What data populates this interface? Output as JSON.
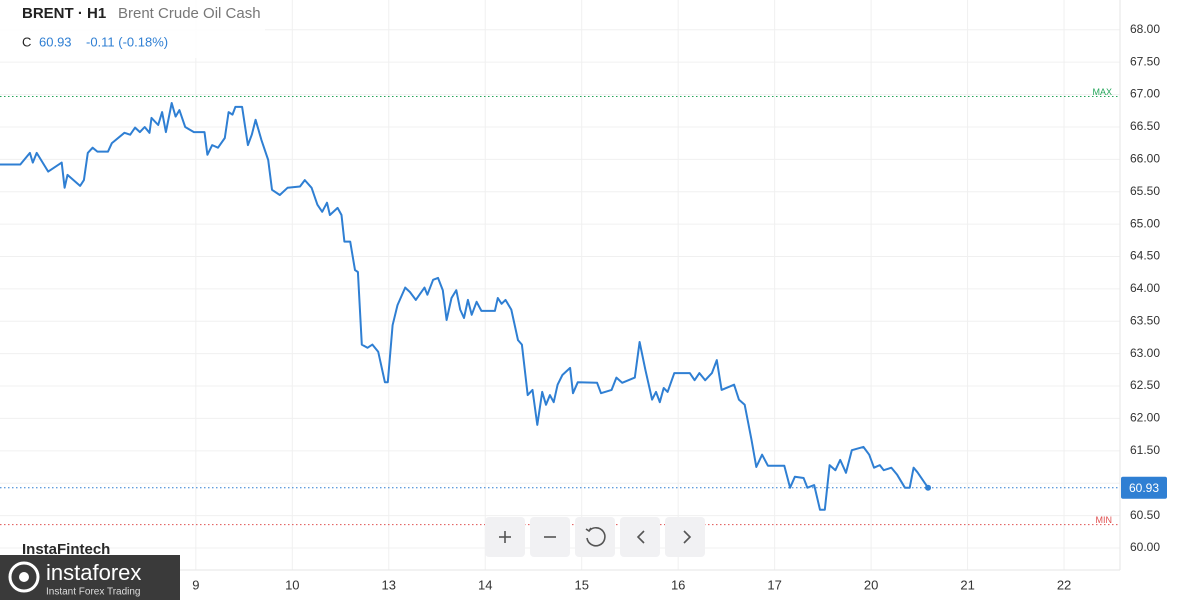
{
  "header": {
    "symbol": "BRENT · H1",
    "name": "Brent Crude Oil Cash",
    "close_prefix": "C",
    "change": "-0.11 (-0.18%)"
  },
  "watermark": {
    "top": "InstaFintech",
    "brand": "instaforex",
    "tagline": "Instant Forex Trading"
  },
  "controls": [
    "+",
    "−",
    "reset",
    "<",
    ">"
  ],
  "chart_data": {
    "type": "line",
    "xlim": [
      -2.03,
      9.58
    ],
    "xticks": [
      {
        "value": 0,
        "label": "9"
      },
      {
        "value": 1,
        "label": "10"
      },
      {
        "value": 2,
        "label": "13"
      },
      {
        "value": 3,
        "label": "14"
      },
      {
        "value": 4,
        "label": "15"
      },
      {
        "value": 5,
        "label": "16"
      },
      {
        "value": 6,
        "label": "17"
      },
      {
        "value": 7,
        "label": "20"
      },
      {
        "value": 8,
        "label": "21"
      },
      {
        "value": 9,
        "label": "22"
      }
    ],
    "ylim": [
      59.66,
      68.46
    ],
    "yticks": [
      {
        "value": 60,
        "label": "60.00"
      },
      {
        "value": 60.5,
        "label": "60.50"
      },
      {
        "value": 61,
        "label": "61.00"
      },
      {
        "value": 61.5,
        "label": "61.50"
      },
      {
        "value": 62,
        "label": "62.00"
      },
      {
        "value": 62.5,
        "label": "62.50"
      },
      {
        "value": 63,
        "label": "63.00"
      },
      {
        "value": 63.5,
        "label": "63.50"
      },
      {
        "value": 64,
        "label": "64.00"
      },
      {
        "value": 64.5,
        "label": "64.50"
      },
      {
        "value": 65,
        "label": "65.00"
      },
      {
        "value": 65.5,
        "label": "65.50"
      },
      {
        "value": 66,
        "label": "66.00"
      },
      {
        "value": 66.5,
        "label": "66.50"
      },
      {
        "value": 67,
        "label": "67.00"
      },
      {
        "value": 67.5,
        "label": "67.50"
      },
      {
        "value": 68,
        "label": "68.00"
      }
    ],
    "grid": true,
    "last_price": 60.93,
    "max": {
      "value": 66.97,
      "label": "MAX",
      "color": "#26a65b"
    },
    "min": {
      "value": 60.36,
      "label": "MIN",
      "color": "#e05050"
    },
    "series": [
      {
        "color": "#2f7fd3",
        "x": [
          -2.03,
          -1.82,
          -1.72,
          -1.69,
          -1.65,
          -1.53,
          -1.39,
          -1.36,
          -1.33,
          -1.2,
          -1.16,
          -1.12,
          -1.07,
          -1.02,
          -0.91,
          -0.87,
          -0.74,
          -0.68,
          -0.63,
          -0.58,
          -0.53,
          -0.48,
          -0.46,
          -0.39,
          -0.35,
          -0.31,
          -0.25,
          -0.21,
          -0.17,
          -0.11,
          -0.02,
          0.09,
          0.12,
          0.17,
          0.23,
          0.3,
          0.34,
          0.38,
          0.41,
          0.48,
          0.54,
          0.58,
          0.62,
          0.68,
          0.75,
          0.79,
          0.87,
          0.95,
          1.08,
          1.13,
          1.2,
          1.26,
          1.31,
          1.36,
          1.39,
          1.47,
          1.51,
          1.54,
          1.6,
          1.65,
          1.68,
          1.72,
          1.78,
          1.83,
          1.89,
          1.96,
          1.99,
          2.04,
          2.09,
          2.17,
          2.22,
          2.28,
          2.37,
          2.4,
          2.46,
          2.51,
          2.56,
          2.6,
          2.65,
          2.7,
          2.74,
          2.78,
          2.82,
          2.86,
          2.91,
          2.96,
          3.1,
          3.13,
          3.17,
          3.21,
          3.27,
          3.34,
          3.38,
          3.44,
          3.49,
          3.54,
          3.59,
          3.63,
          3.67,
          3.71,
          3.75,
          3.8,
          3.88,
          3.91,
          3.96,
          4.16,
          4.2,
          4.31,
          4.36,
          4.42,
          4.55,
          4.6,
          4.66,
          4.73,
          4.77,
          4.81,
          4.85,
          4.89,
          4.96,
          5.12,
          5.17,
          5.22,
          5.28,
          5.35,
          5.4,
          5.45,
          5.58,
          5.63,
          5.69,
          5.76,
          5.81,
          5.87,
          5.93,
          6.1,
          6.16,
          6.21,
          6.3,
          6.34,
          6.41,
          6.47,
          6.52,
          6.57,
          6.63,
          6.68,
          6.74,
          6.8,
          6.92,
          6.98,
          7.03,
          7.09,
          7.13,
          7.21,
          7.27,
          7.35,
          7.4,
          7.44,
          7.48,
          7.59
        ],
        "values": [
          65.92,
          65.92,
          66.1,
          65.95,
          66.1,
          65.81,
          65.95,
          65.56,
          65.76,
          65.59,
          65.68,
          66.1,
          66.18,
          66.12,
          66.12,
          66.25,
          66.41,
          66.38,
          66.49,
          66.42,
          66.5,
          66.41,
          66.64,
          66.53,
          66.73,
          66.42,
          66.87,
          66.66,
          66.76,
          66.5,
          66.42,
          66.42,
          66.07,
          66.22,
          66.18,
          66.33,
          66.73,
          66.69,
          66.81,
          66.81,
          66.22,
          66.38,
          66.61,
          66.3,
          65.99,
          65.53,
          65.45,
          65.56,
          65.58,
          65.68,
          65.56,
          65.3,
          65.19,
          65.33,
          65.14,
          65.25,
          65.14,
          64.73,
          64.73,
          64.29,
          64.26,
          63.14,
          63.09,
          63.14,
          63.03,
          62.56,
          62.56,
          63.44,
          63.75,
          64.02,
          63.95,
          63.83,
          64.02,
          63.91,
          64.14,
          64.17,
          63.98,
          63.52,
          63.86,
          63.98,
          63.68,
          63.55,
          63.83,
          63.6,
          63.8,
          63.66,
          63.66,
          63.86,
          63.77,
          63.83,
          63.68,
          63.21,
          63.14,
          62.36,
          62.44,
          61.9,
          62.41,
          62.21,
          62.36,
          62.25,
          62.52,
          62.67,
          62.78,
          62.39,
          62.56,
          62.55,
          62.39,
          62.44,
          62.63,
          62.55,
          62.63,
          63.18,
          62.75,
          62.29,
          62.41,
          62.25,
          62.47,
          62.41,
          62.7,
          62.7,
          62.59,
          62.7,
          62.59,
          62.7,
          62.9,
          62.44,
          62.52,
          62.29,
          62.21,
          61.67,
          61.25,
          61.44,
          61.27,
          61.27,
          60.93,
          61.1,
          61.08,
          60.93,
          60.97,
          60.59,
          60.59,
          61.28,
          61.2,
          61.36,
          61.16,
          61.51,
          61.56,
          61.44,
          61.24,
          61.28,
          61.2,
          61.24,
          61.13,
          60.93,
          60.93,
          61.24,
          61.17,
          60.93
        ]
      }
    ]
  }
}
